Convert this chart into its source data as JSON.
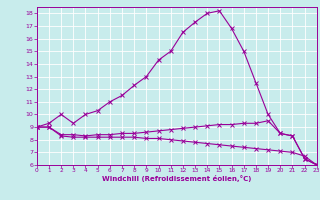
{
  "background_color": "#c8ecec",
  "grid_color": "#ffffff",
  "line_color": "#990099",
  "xlabel": "Windchill (Refroidissement éolien,°C)",
  "xlim": [
    0,
    23
  ],
  "ylim": [
    6,
    18.5
  ],
  "yticks": [
    6,
    7,
    8,
    9,
    10,
    11,
    12,
    13,
    14,
    15,
    16,
    17,
    18
  ],
  "xticks": [
    0,
    1,
    2,
    3,
    4,
    5,
    6,
    7,
    8,
    9,
    10,
    11,
    12,
    13,
    14,
    15,
    16,
    17,
    18,
    19,
    20,
    21,
    22,
    23
  ],
  "line1_x": [
    0,
    1,
    2,
    3,
    4,
    5,
    6,
    7,
    8,
    9,
    10,
    11,
    12,
    13,
    14,
    15,
    16,
    17,
    18,
    19,
    20,
    21,
    22,
    23
  ],
  "line1_y": [
    9.0,
    9.3,
    10.0,
    9.3,
    10.0,
    10.3,
    11.0,
    11.5,
    12.3,
    13.0,
    14.3,
    15.0,
    16.5,
    17.3,
    18.0,
    18.2,
    16.8,
    15.0,
    12.5,
    10.0,
    8.5,
    8.3,
    6.5,
    6.0
  ],
  "line2_x": [
    0,
    1,
    2,
    3,
    4,
    5,
    6,
    7,
    8,
    9,
    10,
    11,
    12,
    13,
    14,
    15,
    16,
    17,
    18,
    19,
    20,
    21,
    22,
    23
  ],
  "line2_y": [
    9.0,
    9.0,
    8.4,
    8.4,
    8.3,
    8.4,
    8.4,
    8.5,
    8.5,
    8.6,
    8.7,
    8.8,
    8.9,
    9.0,
    9.1,
    9.2,
    9.2,
    9.3,
    9.3,
    9.5,
    8.5,
    8.3,
    6.5,
    6.0
  ],
  "line3_x": [
    0,
    1,
    2,
    3,
    4,
    5,
    6,
    7,
    8,
    9,
    10,
    11,
    12,
    13,
    14,
    15,
    16,
    17,
    18,
    19,
    20,
    21,
    22,
    23
  ],
  "line3_y": [
    9.0,
    9.0,
    8.3,
    8.2,
    8.2,
    8.2,
    8.2,
    8.2,
    8.2,
    8.1,
    8.1,
    8.0,
    7.9,
    7.8,
    7.7,
    7.6,
    7.5,
    7.4,
    7.3,
    7.2,
    7.1,
    7.0,
    6.7,
    6.0
  ]
}
